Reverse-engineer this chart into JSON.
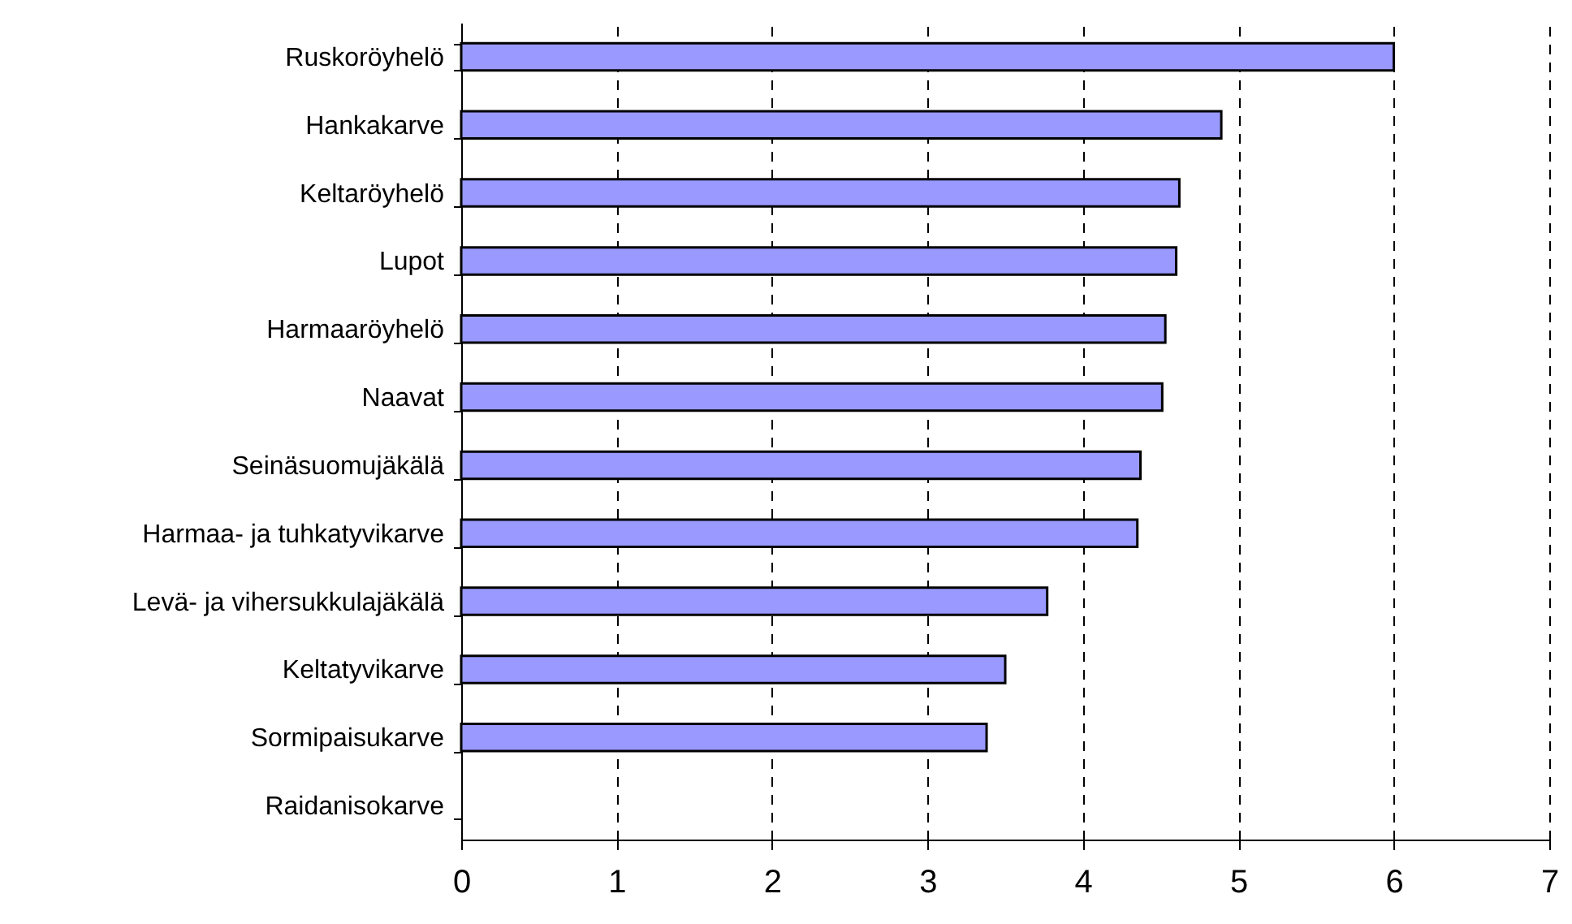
{
  "chart_data": {
    "type": "bar",
    "orientation": "horizontal",
    "categories": [
      "Ruskoröyhelö",
      "Hankakarve",
      "Keltaröyhelö",
      "Lupot",
      "Harmaaröyhelö",
      "Naavat",
      "Seinäsuomujäkälä",
      "Harmaa- ja tuhkatyvikarve",
      "Levä- ja vihersukkulajäkälä",
      "Keltatyvikarve",
      "Sormipaisukarve",
      "Raidanisokarve"
    ],
    "values": [
      6.0,
      4.89,
      4.62,
      4.6,
      4.53,
      4.51,
      4.37,
      4.35,
      3.77,
      3.5,
      3.38,
      null
    ],
    "color": "#9999ff",
    "xlim": [
      0,
      7
    ],
    "xticks": [
      0,
      1,
      2,
      3,
      4,
      5,
      6,
      7
    ],
    "grid": "x"
  }
}
